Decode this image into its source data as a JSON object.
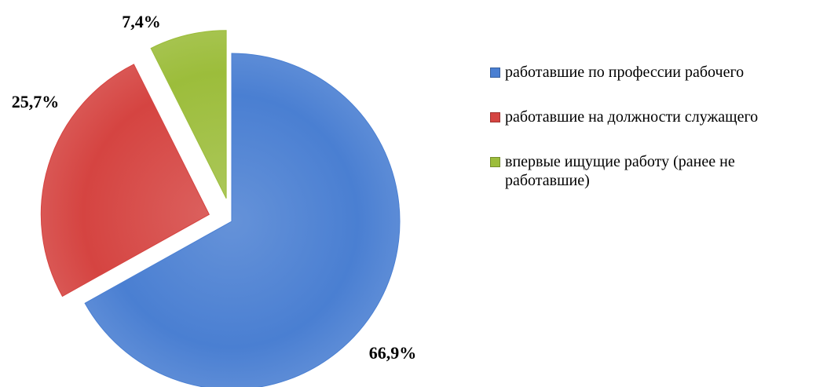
{
  "chart_data": {
    "type": "pie",
    "categories": [
      "работавшие по профессии рабочего",
      "работавшие на должности служащего",
      "впервые ищущие работу (ранее не работавшие)"
    ],
    "values": [
      66.9,
      25.7,
      7.4
    ],
    "value_labels": [
      "66,9%",
      "25,7%",
      "7,4%"
    ],
    "colors": [
      "#4a7fd2",
      "#d54441",
      "#9cbd3b"
    ],
    "legend": "right"
  }
}
